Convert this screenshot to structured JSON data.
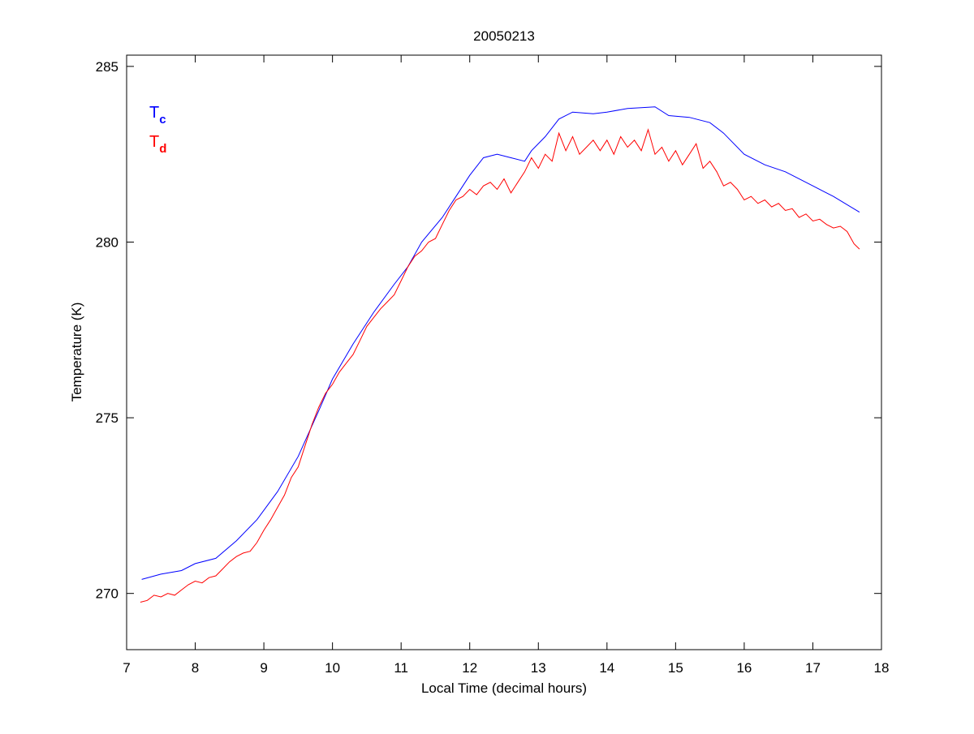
{
  "chart_data": {
    "type": "line",
    "title": "20050213",
    "xlabel": "Local Time (decimal hours)",
    "ylabel": "Temperature (K)",
    "xlim": [
      7,
      18
    ],
    "ylim": [
      268.4,
      285.32
    ],
    "xticks": [
      7,
      8,
      9,
      10,
      11,
      12,
      13,
      14,
      15,
      16,
      17,
      18
    ],
    "yticks": [
      270,
      275,
      280,
      285
    ],
    "grid": false,
    "legend_placement": "top-left",
    "series": [
      {
        "name": "Tc",
        "legend_main": "T",
        "legend_sub": "c",
        "color": "#0000ff",
        "x": [
          7.22,
          7.5,
          7.8,
          8.0,
          8.3,
          8.6,
          8.9,
          9.2,
          9.5,
          9.8,
          10.0,
          10.3,
          10.6,
          10.9,
          11.1,
          11.3,
          11.6,
          11.8,
          12.0,
          12.2,
          12.4,
          12.6,
          12.8,
          12.9,
          13.1,
          13.3,
          13.5,
          13.8,
          14.0,
          14.3,
          14.7,
          14.9,
          15.2,
          15.5,
          15.7,
          16.0,
          16.3,
          16.6,
          17.0,
          17.3,
          17.68
        ],
        "y": [
          270.4,
          270.55,
          270.65,
          270.85,
          271.0,
          271.5,
          272.1,
          272.9,
          273.9,
          275.2,
          276.1,
          277.1,
          278.0,
          278.8,
          279.3,
          280.0,
          280.7,
          281.3,
          281.9,
          282.4,
          282.5,
          282.4,
          282.3,
          282.6,
          283.0,
          283.5,
          283.7,
          283.65,
          283.7,
          283.8,
          283.85,
          283.6,
          283.55,
          283.4,
          283.1,
          282.5,
          282.2,
          282.0,
          281.6,
          281.3,
          280.85
        ]
      },
      {
        "name": "Td",
        "legend_main": "T",
        "legend_sub": "d",
        "color": "#ff0000",
        "x": [
          7.2,
          7.3,
          7.4,
          7.5,
          7.6,
          7.7,
          7.8,
          7.9,
          8.0,
          8.1,
          8.2,
          8.3,
          8.4,
          8.5,
          8.6,
          8.7,
          8.8,
          8.9,
          9.0,
          9.1,
          9.2,
          9.3,
          9.4,
          9.5,
          9.6,
          9.7,
          9.8,
          9.9,
          10.0,
          10.1,
          10.2,
          10.3,
          10.4,
          10.5,
          10.6,
          10.7,
          10.8,
          10.9,
          11.0,
          11.1,
          11.2,
          11.3,
          11.4,
          11.5,
          11.6,
          11.7,
          11.8,
          11.9,
          12.0,
          12.1,
          12.2,
          12.3,
          12.4,
          12.5,
          12.6,
          12.7,
          12.8,
          12.9,
          13.0,
          13.1,
          13.2,
          13.3,
          13.4,
          13.5,
          13.6,
          13.7,
          13.8,
          13.9,
          14.0,
          14.1,
          14.2,
          14.3,
          14.4,
          14.5,
          14.6,
          14.7,
          14.8,
          14.9,
          15.0,
          15.1,
          15.2,
          15.3,
          15.4,
          15.5,
          15.6,
          15.7,
          15.8,
          15.9,
          16.0,
          16.1,
          16.2,
          16.3,
          16.4,
          16.5,
          16.6,
          16.7,
          16.8,
          16.9,
          17.0,
          17.1,
          17.2,
          17.3,
          17.4,
          17.5,
          17.6,
          17.68
        ],
        "y": [
          269.75,
          269.8,
          269.95,
          269.9,
          270.0,
          269.95,
          270.1,
          270.25,
          270.35,
          270.3,
          270.45,
          270.5,
          270.7,
          270.9,
          271.05,
          271.15,
          271.2,
          271.45,
          271.8,
          272.1,
          272.45,
          272.8,
          273.3,
          273.6,
          274.2,
          274.8,
          275.3,
          275.7,
          275.95,
          276.3,
          276.55,
          276.8,
          277.2,
          277.6,
          277.85,
          278.1,
          278.3,
          278.5,
          278.9,
          279.3,
          279.6,
          279.75,
          280.0,
          280.1,
          280.5,
          280.9,
          281.2,
          281.3,
          281.5,
          281.35,
          281.6,
          281.7,
          281.5,
          281.8,
          281.4,
          281.7,
          282.0,
          282.4,
          282.1,
          282.5,
          282.3,
          283.1,
          282.6,
          283.0,
          282.5,
          282.7,
          282.9,
          282.6,
          282.9,
          282.5,
          283.0,
          282.7,
          282.9,
          282.6,
          283.2,
          282.5,
          282.7,
          282.3,
          282.6,
          282.2,
          282.5,
          282.8,
          282.1,
          282.3,
          282.0,
          281.6,
          281.7,
          281.5,
          281.2,
          281.3,
          281.1,
          281.2,
          281.0,
          281.1,
          280.9,
          280.95,
          280.7,
          280.8,
          280.6,
          280.65,
          280.5,
          280.4,
          280.45,
          280.3,
          279.95,
          279.8
        ]
      }
    ]
  }
}
